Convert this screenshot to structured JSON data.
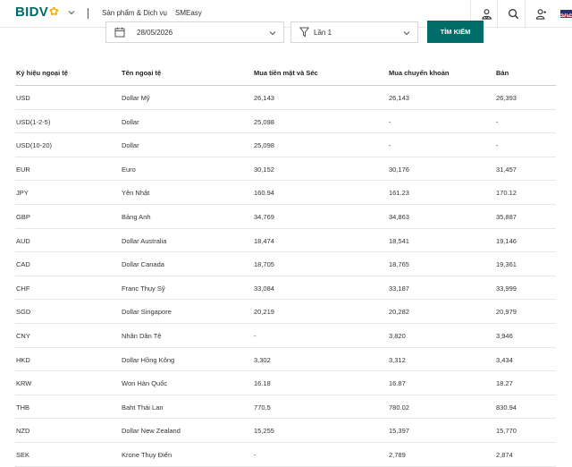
{
  "header": {
    "logo_text": "BIDV",
    "nav": [
      "Sản phẩm & Dịch vụ",
      "SMEasy"
    ],
    "icons": [
      "user-shield-icon",
      "search-icon",
      "user-icon",
      "uk-flag-icon"
    ]
  },
  "filters": {
    "date_value": "28/05/2026",
    "times_value": "Lần 1",
    "search_button": "TÌM KIẾM"
  },
  "table": {
    "columns": [
      "Ký hiệu ngoại tệ",
      "Tên ngoại tệ",
      "Mua tiền mặt và Séc",
      "Mua chuyển khoản",
      "Bán"
    ],
    "rows": [
      [
        "USD",
        "Dollar Mỹ",
        "26,143",
        "26,143",
        "26,393"
      ],
      [
        "USD(1-2-5)",
        "Dollar",
        "25,098",
        "-",
        "-"
      ],
      [
        "USD(10-20)",
        "Dollar",
        "25,098",
        "-",
        "-"
      ],
      [
        "EUR",
        "Euro",
        "30,152",
        "30,176",
        "31,457"
      ],
      [
        "JPY",
        "Yên Nhật",
        "160.94",
        "161.23",
        "170.12"
      ],
      [
        "GBP",
        "Bảng Anh",
        "34,769",
        "34,863",
        "35,887"
      ],
      [
        "AUD",
        "Dollar Australia",
        "18,474",
        "18,541",
        "19,146"
      ],
      [
        "CAD",
        "Dollar Canada",
        "18,705",
        "18,765",
        "19,361"
      ],
      [
        "CHF",
        "Franc Thụy Sỹ",
        "33,084",
        "33,187",
        "33,999"
      ],
      [
        "SGD",
        "Dollar Singapore",
        "20,219",
        "20,282",
        "20,979"
      ],
      [
        "CNY",
        "Nhân Dân Tệ",
        "-",
        "3,820",
        "3,946"
      ],
      [
        "HKD",
        "Dollar Hồng Kông",
        "3,302",
        "3,312",
        "3,434"
      ],
      [
        "KRW",
        "Won Hàn Quốc",
        "16.18",
        "16.87",
        "18.27"
      ],
      [
        "THB",
        "Baht Thái Lan",
        "770.5",
        "780.02",
        "830.94"
      ],
      [
        "NZD",
        "Dollar New Zealand",
        "15,255",
        "15,397",
        "15,770"
      ],
      [
        "SEK",
        "Krone Thụy Điển",
        "-",
        "2,789",
        "2,874"
      ]
    ]
  },
  "colors": {
    "brand": "#006b68",
    "logo_accent": "#f5b400"
  }
}
